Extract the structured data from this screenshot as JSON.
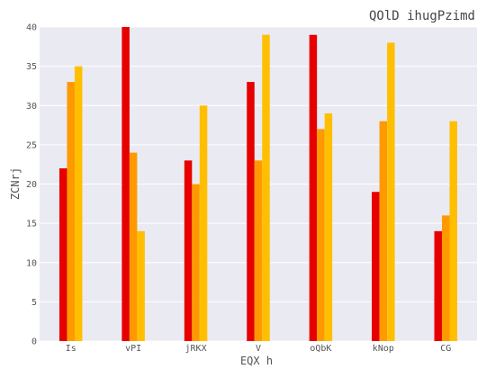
{
  "chart_data": {
    "type": "bar",
    "title": "QOlD ihugPzimd",
    "xlabel": "EQX h",
    "ylabel": "ZCNrj",
    "categories": [
      "Is",
      "vPI",
      "jRKX",
      "V",
      "oQbK",
      "kNop",
      "CG"
    ],
    "series": [
      {
        "values": [
          22,
          40,
          23,
          33,
          39,
          19,
          14
        ],
        "color": "#e60000"
      },
      {
        "values": [
          33,
          24,
          20,
          23,
          27,
          28,
          16
        ],
        "color": "#ff9900"
      },
      {
        "values": [
          35,
          14,
          30,
          39,
          29,
          38,
          28
        ],
        "color": "#ffbf00"
      }
    ],
    "ylim": [
      0,
      40
    ],
    "yticks": [
      0,
      5,
      10,
      15,
      20,
      25,
      30,
      35,
      40
    ],
    "grid": true,
    "background": "#eaeaf2",
    "legend": "none"
  }
}
